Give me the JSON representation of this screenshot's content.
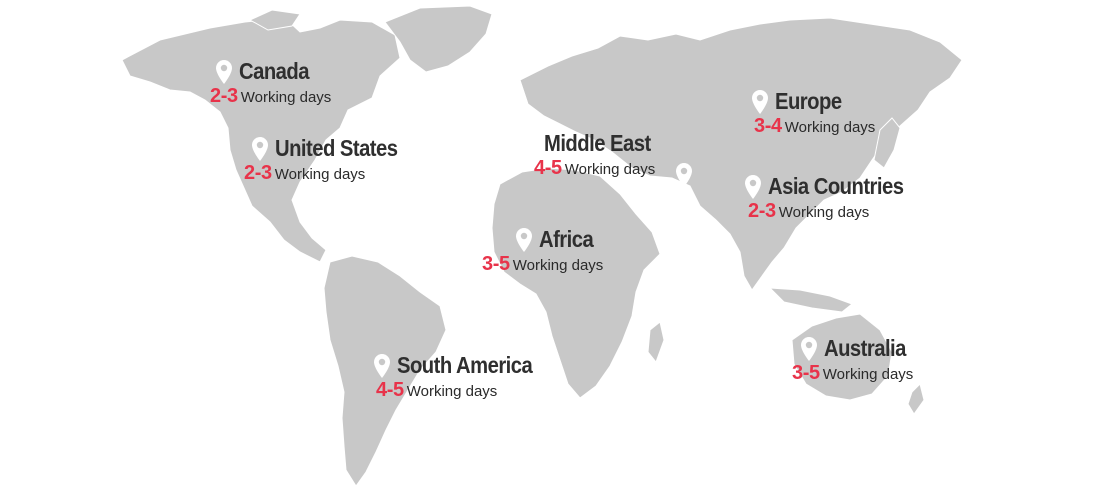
{
  "colors": {
    "land": "#c8c8c8",
    "region_name": "#2f2f2f",
    "days_accent": "#e8334a",
    "pin": "#ffffff"
  },
  "icons": {
    "pin": "location-pin-icon"
  },
  "regions": [
    {
      "name": "Canada",
      "days": "2-3",
      "unit": "Working days"
    },
    {
      "name": "United States",
      "days": "2-3",
      "unit": "Working days"
    },
    {
      "name": "Middle East",
      "days": "4-5",
      "unit": "Working days"
    },
    {
      "name": "Africa",
      "days": "3-5",
      "unit": "Working days"
    },
    {
      "name": "South America",
      "days": "4-5",
      "unit": "Working days"
    },
    {
      "name": "Europe",
      "days": "3-4",
      "unit": "Working days"
    },
    {
      "name": "Asia Countries",
      "days": "2-3",
      "unit": "Working days"
    },
    {
      "name": "Australia",
      "days": "3-5",
      "unit": "Working days"
    }
  ]
}
